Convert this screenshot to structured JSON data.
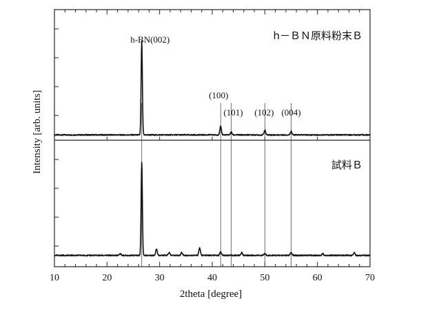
{
  "chart_data": {
    "type": "line",
    "xlabel": "2theta  [degree]",
    "ylabel": "Intensity  [arb. units]",
    "xlim": [
      10,
      70
    ],
    "x_ticks": [
      10,
      20,
      30,
      40,
      50,
      60,
      70
    ],
    "grid": false,
    "legend": "none",
    "reference_lines": [
      26.6,
      41.6,
      43.6,
      50.0,
      55.0
    ],
    "series": [
      {
        "name": "h－ＢＮ原料粉末Ｂ",
        "baseline": 0.02,
        "peaks": [
          {
            "x": 26.6,
            "intensity": 1.0,
            "label": "h-BN(002)"
          },
          {
            "x": 41.6,
            "intensity": 0.09,
            "label": "(100)"
          },
          {
            "x": 43.6,
            "intensity": 0.03,
            "label": "(101)"
          },
          {
            "x": 50.0,
            "intensity": 0.05,
            "label": "(102)"
          },
          {
            "x": 55.0,
            "intensity": 0.04,
            "label": "(004)"
          }
        ]
      },
      {
        "name": "試料Ｂ",
        "baseline": 0.04,
        "peaks": [
          {
            "x": 22.5,
            "intensity": 0.02
          },
          {
            "x": 26.6,
            "intensity": 1.0
          },
          {
            "x": 29.4,
            "intensity": 0.07
          },
          {
            "x": 31.8,
            "intensity": 0.03
          },
          {
            "x": 34.2,
            "intensity": 0.03
          },
          {
            "x": 37.6,
            "intensity": 0.08
          },
          {
            "x": 41.6,
            "intensity": 0.04
          },
          {
            "x": 45.6,
            "intensity": 0.03
          },
          {
            "x": 50.0,
            "intensity": 0.02
          },
          {
            "x": 55.0,
            "intensity": 0.03
          },
          {
            "x": 61.0,
            "intensity": 0.02
          },
          {
            "x": 67.0,
            "intensity": 0.03
          }
        ]
      }
    ]
  }
}
